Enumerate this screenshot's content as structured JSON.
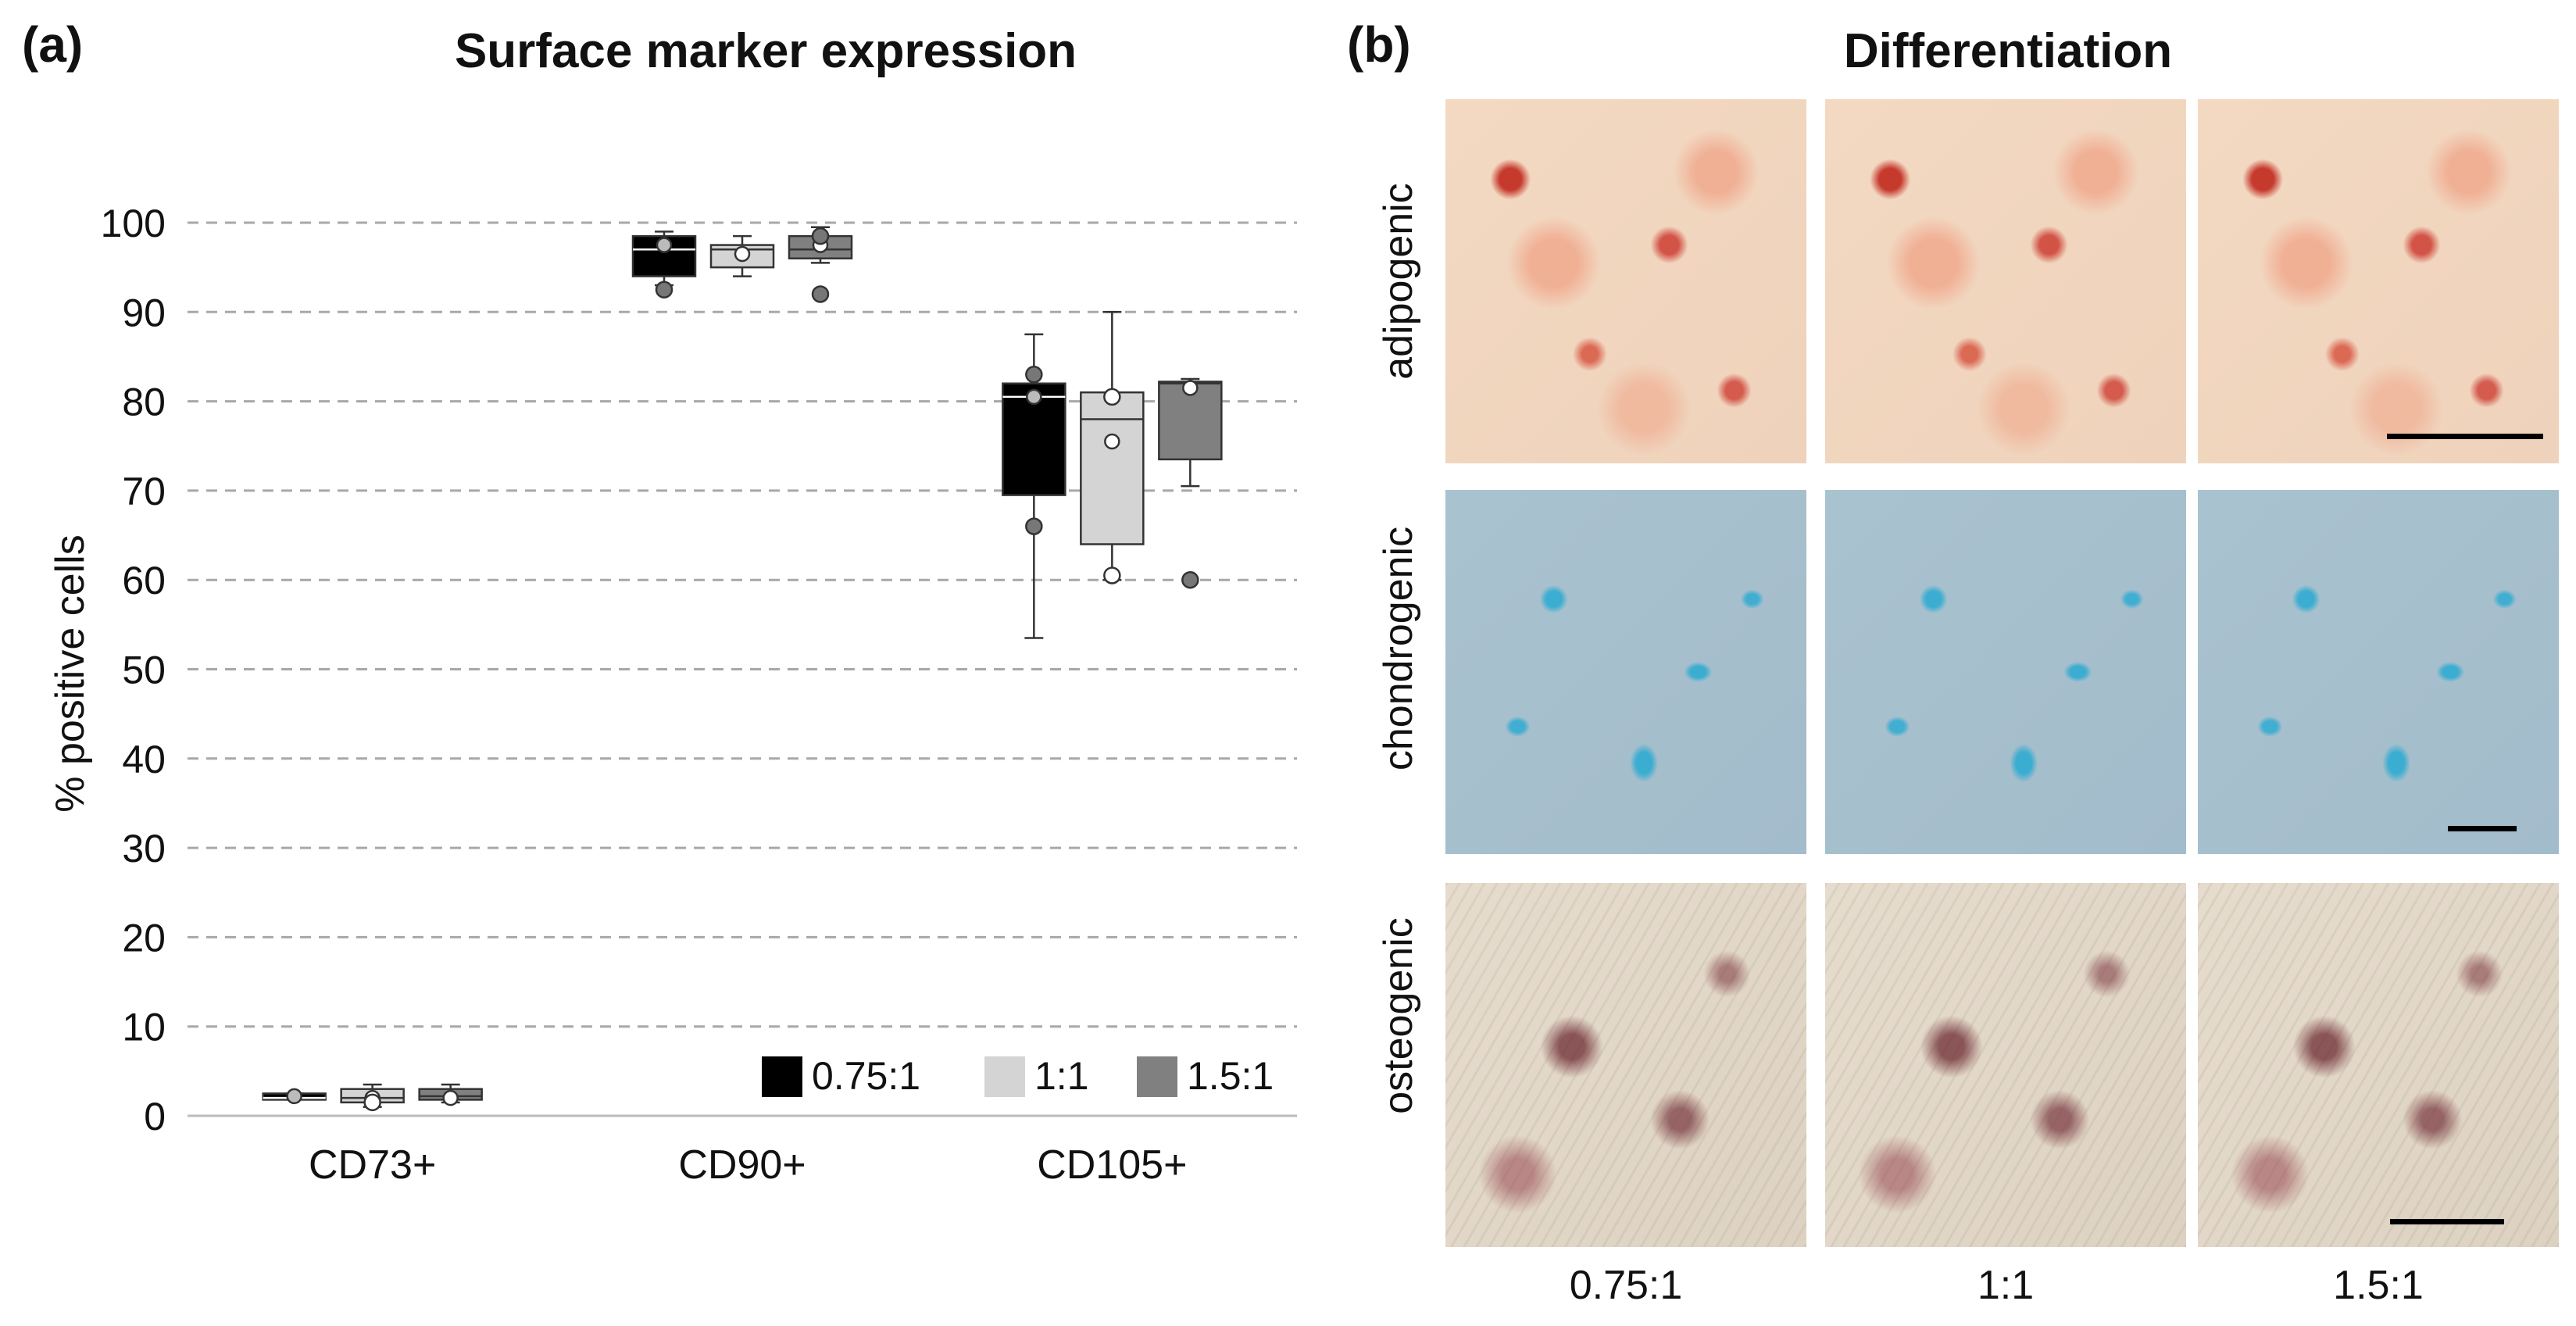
{
  "panel_a": {
    "letter": "(a)",
    "title": "Surface marker expression"
  },
  "panel_b": {
    "letter": "(b)",
    "title": "Differentiation",
    "rows": [
      "adipogenic",
      "chondrogenic",
      "osteogenic"
    ],
    "columns": [
      "0.75:1",
      "1:1",
      "1.5:1"
    ]
  },
  "chart_data": {
    "type": "box",
    "title": "Surface marker expression",
    "xlabel": "",
    "ylabel": "% positive cells",
    "ylim": [
      0,
      100
    ],
    "yticks": [
      0,
      10,
      20,
      30,
      40,
      50,
      60,
      70,
      80,
      90,
      100
    ],
    "grid": true,
    "legend_position": "bottom-right",
    "categories": [
      "CD73+",
      "CD90+",
      "CD105+"
    ],
    "series": [
      {
        "name": "0.75:1",
        "color": "#000000",
        "boxes": [
          {
            "min": 2,
            "q1": 2,
            "median": 2,
            "q3": 2.5,
            "max": 2.5,
            "mean": 2.2,
            "outliers": []
          },
          {
            "min": 93,
            "q1": 94,
            "median": 97,
            "q3": 98.5,
            "max": 99,
            "mean": 97.5,
            "outliers": [
              92.5
            ]
          },
          {
            "min": 53.5,
            "q1": 69.5,
            "median": 80.5,
            "q3": 82,
            "max": 87.5,
            "mean": 80.5,
            "outliers": [
              83,
              66
            ]
          }
        ]
      },
      {
        "name": "1:1",
        "color": "#d4d4d4",
        "boxes": [
          {
            "min": 1,
            "q1": 1.5,
            "median": 2,
            "q3": 3,
            "max": 3.5,
            "mean": 2,
            "outliers": [
              1.5
            ]
          },
          {
            "min": 94,
            "q1": 95,
            "median": 97,
            "q3": 97.5,
            "max": 98.5,
            "mean": 96.5,
            "outliers": []
          },
          {
            "min": 60,
            "q1": 64,
            "median": 78,
            "q3": 81,
            "max": 90,
            "mean": 75.5,
            "outliers": [
              80.5,
              60.5
            ]
          }
        ]
      },
      {
        "name": "1.5:1",
        "color": "#808080",
        "boxes": [
          {
            "min": 1.5,
            "q1": 1.8,
            "median": 2.2,
            "q3": 3,
            "max": 3.5,
            "mean": 2,
            "outliers": []
          },
          {
            "min": 95.5,
            "q1": 96,
            "median": 97,
            "q3": 98.5,
            "max": 99.5,
            "mean": 97.5,
            "outliers": [
              98.5,
              92
            ]
          },
          {
            "min": 70.5,
            "q1": 73.5,
            "median": 82,
            "q3": 82.2,
            "max": 82.5,
            "mean": 81.5,
            "outliers": [
              60
            ]
          }
        ]
      }
    ]
  }
}
